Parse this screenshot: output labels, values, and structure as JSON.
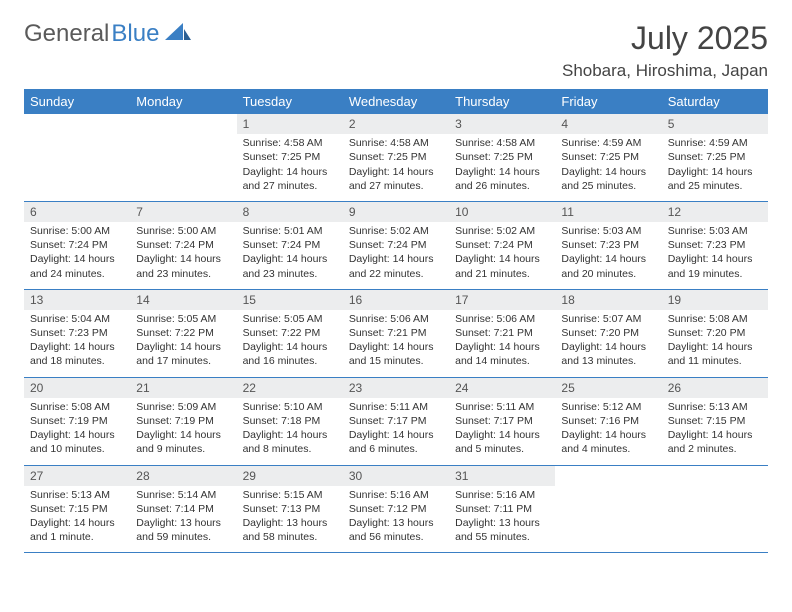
{
  "brand": {
    "part1": "General",
    "part2": "Blue"
  },
  "title": "July 2025",
  "subtitle": "Shobara, Hiroshima, Japan",
  "colors": {
    "header_bg": "#3a7fc4",
    "header_text": "#ffffff",
    "daynum_bg": "#ecedee",
    "daynum_text": "#555555",
    "body_text": "#333333",
    "border": "#3a7fc4",
    "logo_gray": "#5a5a5a",
    "logo_blue": "#3a7fc4",
    "page_bg": "#ffffff"
  },
  "dayHeaders": [
    "Sunday",
    "Monday",
    "Tuesday",
    "Wednesday",
    "Thursday",
    "Friday",
    "Saturday"
  ],
  "firstWeekday": 2,
  "daysInMonth": 31,
  "days": {
    "1": {
      "sunrise": "4:58 AM",
      "sunset": "7:25 PM",
      "daylight": "14 hours and 27 minutes."
    },
    "2": {
      "sunrise": "4:58 AM",
      "sunset": "7:25 PM",
      "daylight": "14 hours and 27 minutes."
    },
    "3": {
      "sunrise": "4:58 AM",
      "sunset": "7:25 PM",
      "daylight": "14 hours and 26 minutes."
    },
    "4": {
      "sunrise": "4:59 AM",
      "sunset": "7:25 PM",
      "daylight": "14 hours and 25 minutes."
    },
    "5": {
      "sunrise": "4:59 AM",
      "sunset": "7:25 PM",
      "daylight": "14 hours and 25 minutes."
    },
    "6": {
      "sunrise": "5:00 AM",
      "sunset": "7:24 PM",
      "daylight": "14 hours and 24 minutes."
    },
    "7": {
      "sunrise": "5:00 AM",
      "sunset": "7:24 PM",
      "daylight": "14 hours and 23 minutes."
    },
    "8": {
      "sunrise": "5:01 AM",
      "sunset": "7:24 PM",
      "daylight": "14 hours and 23 minutes."
    },
    "9": {
      "sunrise": "5:02 AM",
      "sunset": "7:24 PM",
      "daylight": "14 hours and 22 minutes."
    },
    "10": {
      "sunrise": "5:02 AM",
      "sunset": "7:24 PM",
      "daylight": "14 hours and 21 minutes."
    },
    "11": {
      "sunrise": "5:03 AM",
      "sunset": "7:23 PM",
      "daylight": "14 hours and 20 minutes."
    },
    "12": {
      "sunrise": "5:03 AM",
      "sunset": "7:23 PM",
      "daylight": "14 hours and 19 minutes."
    },
    "13": {
      "sunrise": "5:04 AM",
      "sunset": "7:23 PM",
      "daylight": "14 hours and 18 minutes."
    },
    "14": {
      "sunrise": "5:05 AM",
      "sunset": "7:22 PM",
      "daylight": "14 hours and 17 minutes."
    },
    "15": {
      "sunrise": "5:05 AM",
      "sunset": "7:22 PM",
      "daylight": "14 hours and 16 minutes."
    },
    "16": {
      "sunrise": "5:06 AM",
      "sunset": "7:21 PM",
      "daylight": "14 hours and 15 minutes."
    },
    "17": {
      "sunrise": "5:06 AM",
      "sunset": "7:21 PM",
      "daylight": "14 hours and 14 minutes."
    },
    "18": {
      "sunrise": "5:07 AM",
      "sunset": "7:20 PM",
      "daylight": "14 hours and 13 minutes."
    },
    "19": {
      "sunrise": "5:08 AM",
      "sunset": "7:20 PM",
      "daylight": "14 hours and 11 minutes."
    },
    "20": {
      "sunrise": "5:08 AM",
      "sunset": "7:19 PM",
      "daylight": "14 hours and 10 minutes."
    },
    "21": {
      "sunrise": "5:09 AM",
      "sunset": "7:19 PM",
      "daylight": "14 hours and 9 minutes."
    },
    "22": {
      "sunrise": "5:10 AM",
      "sunset": "7:18 PM",
      "daylight": "14 hours and 8 minutes."
    },
    "23": {
      "sunrise": "5:11 AM",
      "sunset": "7:17 PM",
      "daylight": "14 hours and 6 minutes."
    },
    "24": {
      "sunrise": "5:11 AM",
      "sunset": "7:17 PM",
      "daylight": "14 hours and 5 minutes."
    },
    "25": {
      "sunrise": "5:12 AM",
      "sunset": "7:16 PM",
      "daylight": "14 hours and 4 minutes."
    },
    "26": {
      "sunrise": "5:13 AM",
      "sunset": "7:15 PM",
      "daylight": "14 hours and 2 minutes."
    },
    "27": {
      "sunrise": "5:13 AM",
      "sunset": "7:15 PM",
      "daylight": "14 hours and 1 minute."
    },
    "28": {
      "sunrise": "5:14 AM",
      "sunset": "7:14 PM",
      "daylight": "13 hours and 59 minutes."
    },
    "29": {
      "sunrise": "5:15 AM",
      "sunset": "7:13 PM",
      "daylight": "13 hours and 58 minutes."
    },
    "30": {
      "sunrise": "5:16 AM",
      "sunset": "7:12 PM",
      "daylight": "13 hours and 56 minutes."
    },
    "31": {
      "sunrise": "5:16 AM",
      "sunset": "7:11 PM",
      "daylight": "13 hours and 55 minutes."
    }
  },
  "labels": {
    "sunrise": "Sunrise:",
    "sunset": "Sunset:",
    "daylight": "Daylight:"
  }
}
